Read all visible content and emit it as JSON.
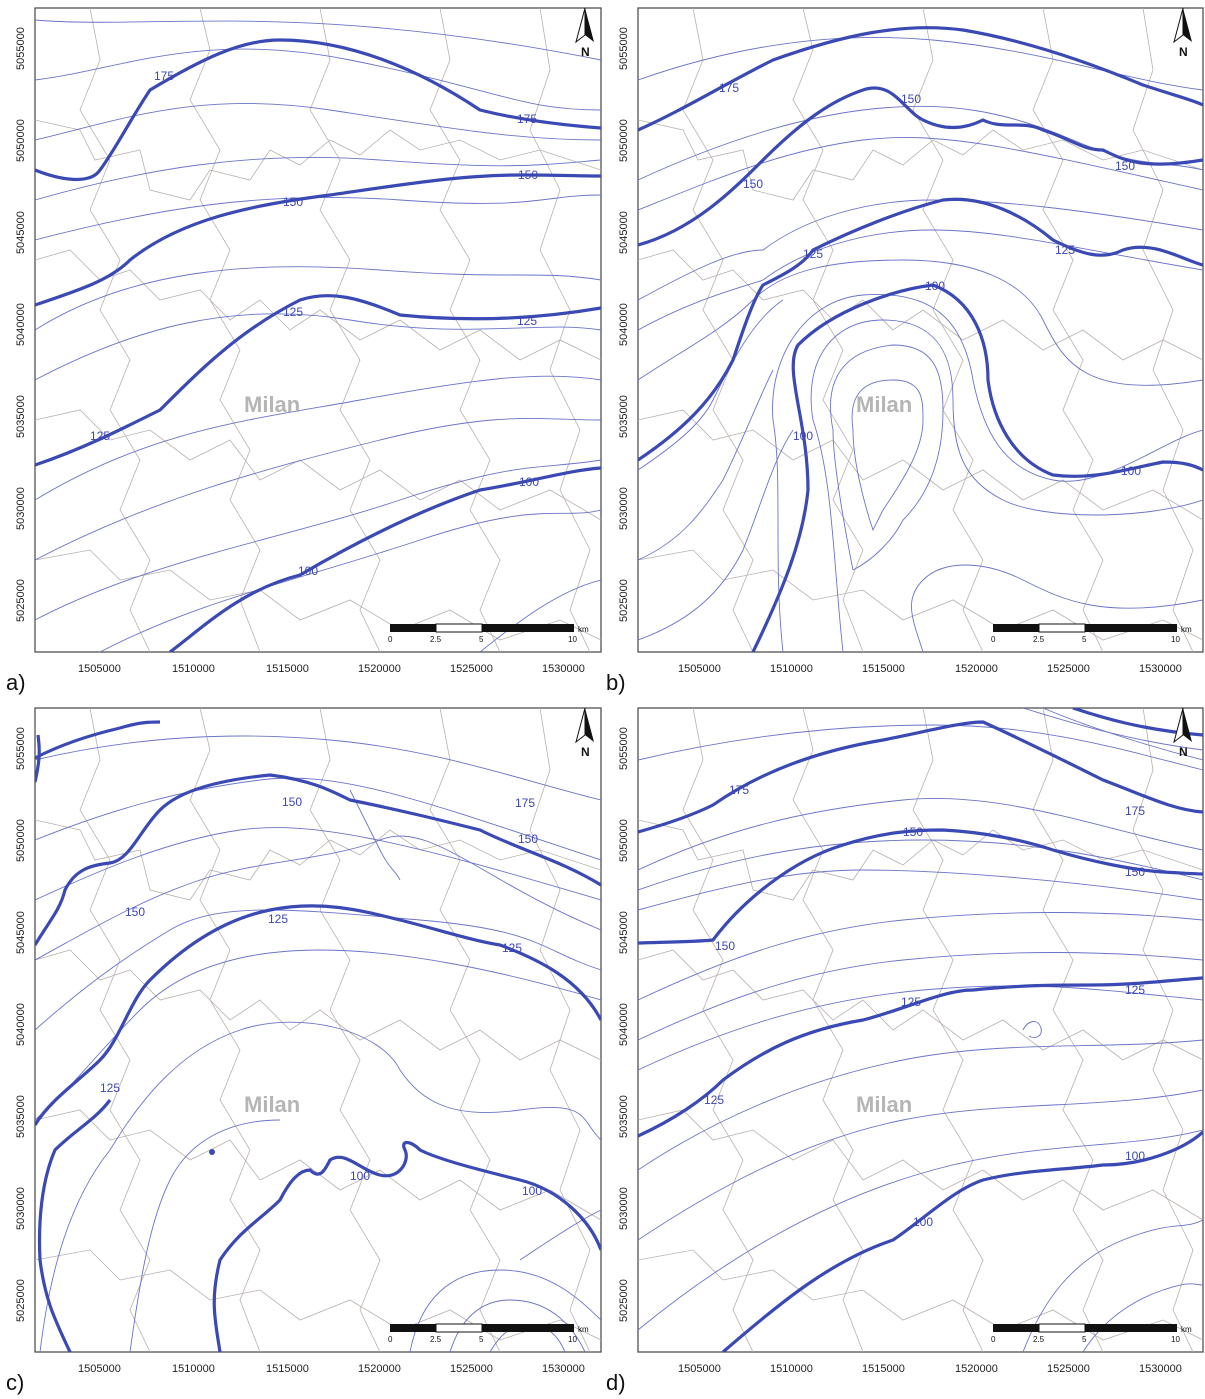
{
  "colors": {
    "major_contour": "#3a49b3",
    "minor_contour": "#6a74c8",
    "boundary": "#b9b1ad",
    "city_label": "#b5b5b5"
  },
  "axes": {
    "x_ticks": [
      "1505000",
      "1510000",
      "1515000",
      "1520000",
      "1525000",
      "1530000"
    ],
    "y_ticks": [
      "5025000",
      "5030000",
      "5035000",
      "5040000",
      "5045000",
      "5050000",
      "5055000"
    ]
  },
  "north_arrow": {
    "label": "N",
    "icon": "north-arrow-icon"
  },
  "scalebar": {
    "unit": "km",
    "ticks": [
      "0",
      "2.5",
      "5",
      "10"
    ]
  },
  "panels": [
    {
      "letter": "a)",
      "city": "Milan",
      "contour_labels": [
        {
          "text": "175"
        },
        {
          "text": "175"
        },
        {
          "text": "150"
        },
        {
          "text": "150"
        },
        {
          "text": "125"
        },
        {
          "text": "125"
        },
        {
          "text": "125"
        },
        {
          "text": "100"
        },
        {
          "text": "100"
        }
      ]
    },
    {
      "letter": "b)",
      "city": "Milan",
      "contour_labels": [
        {
          "text": "175"
        },
        {
          "text": "150"
        },
        {
          "text": "150"
        },
        {
          "text": "150"
        },
        {
          "text": "125"
        },
        {
          "text": "125"
        },
        {
          "text": "100"
        },
        {
          "text": "100"
        },
        {
          "text": "100"
        }
      ]
    },
    {
      "letter": "c)",
      "city": "Milan",
      "contour_labels": [
        {
          "text": "175"
        },
        {
          "text": "150"
        },
        {
          "text": "150"
        },
        {
          "text": "150"
        },
        {
          "text": "125"
        },
        {
          "text": "125"
        },
        {
          "text": "125"
        },
        {
          "text": "100"
        },
        {
          "text": "100"
        }
      ]
    },
    {
      "letter": "d)",
      "city": "Milan",
      "contour_labels": [
        {
          "text": "175"
        },
        {
          "text": "175"
        },
        {
          "text": "150"
        },
        {
          "text": "150"
        },
        {
          "text": "150"
        },
        {
          "text": "125"
        },
        {
          "text": "125"
        },
        {
          "text": "125"
        },
        {
          "text": "100"
        },
        {
          "text": "100"
        }
      ]
    }
  ]
}
